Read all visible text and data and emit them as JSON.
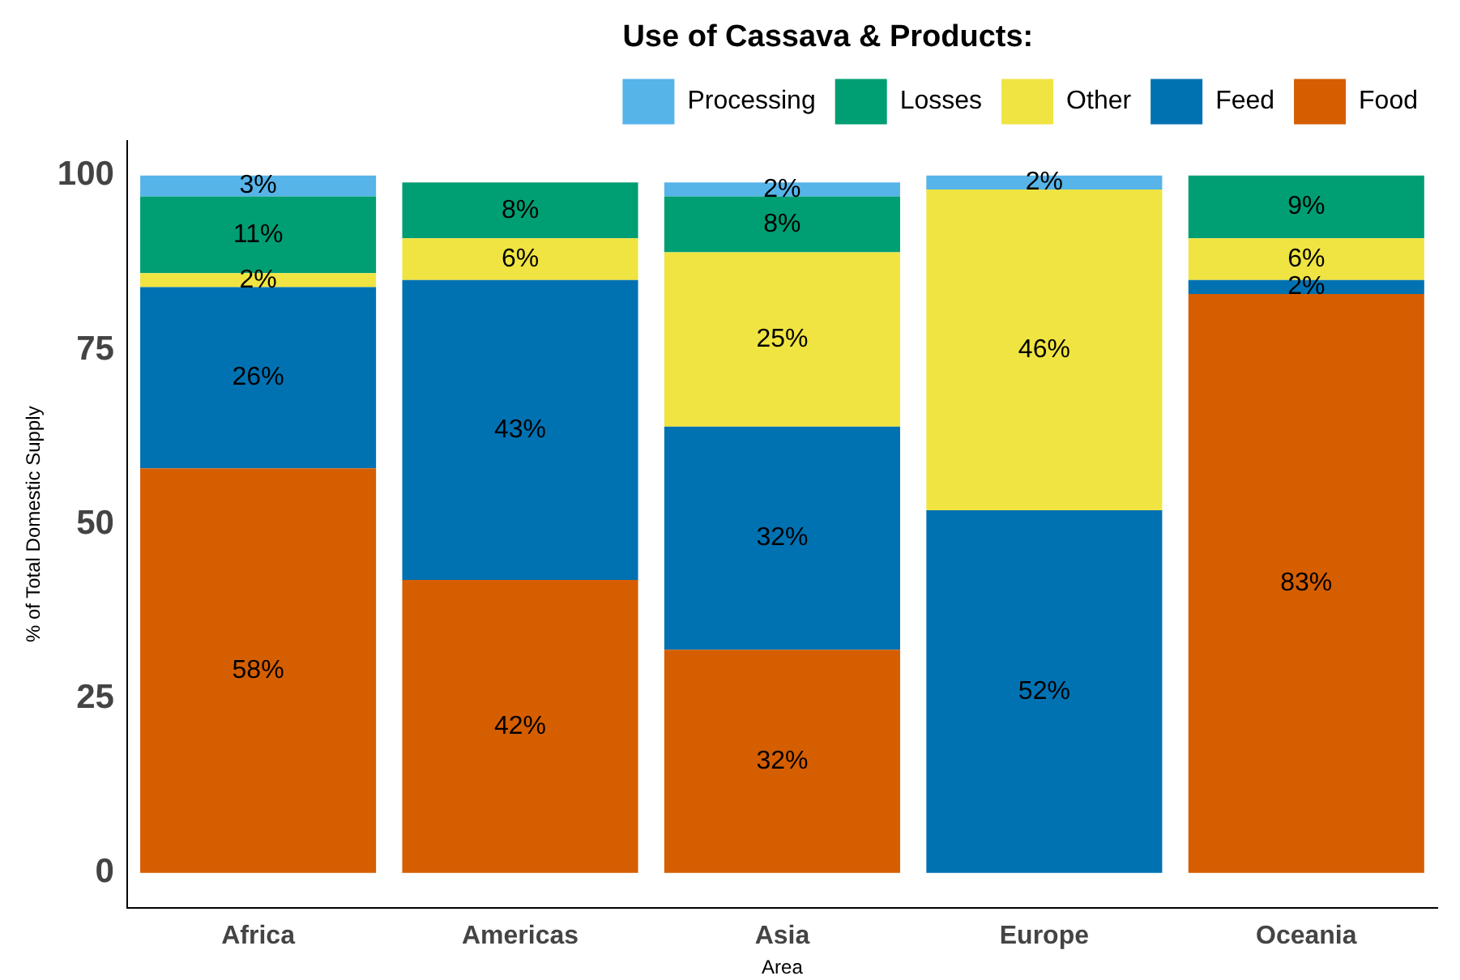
{
  "chart_data": {
    "type": "bar",
    "stacked": true,
    "legend_title": "Use of Cassava & Products:",
    "legend": "top",
    "xlabel": "Area",
    "ylabel": "% of Total Domestic Supply",
    "categories": [
      "Africa",
      "Americas",
      "Asia",
      "Europe",
      "Oceania"
    ],
    "ylim": [
      -5,
      105
    ],
    "yticks": [
      0,
      25,
      50,
      75,
      100
    ],
    "grid": false,
    "series": [
      {
        "name": "Food",
        "color": "#d55e00",
        "values": [
          58,
          42,
          32,
          null,
          83
        ],
        "value_labels": [
          "58%",
          "42%",
          "32%",
          null,
          "83%"
        ]
      },
      {
        "name": "Feed",
        "color": "#0072b2",
        "values": [
          26,
          43,
          32,
          52,
          2
        ],
        "value_labels": [
          "26%",
          "43%",
          "32%",
          "52%",
          "2%"
        ]
      },
      {
        "name": "Other",
        "color": "#f0e442",
        "values": [
          2,
          6,
          25,
          46,
          6
        ],
        "value_labels": [
          "2%",
          "6%",
          "25%",
          "46%",
          "6%"
        ]
      },
      {
        "name": "Losses",
        "color": "#009e73",
        "values": [
          11,
          8,
          8,
          null,
          9
        ],
        "value_labels": [
          "11%",
          "8%",
          "8%",
          null,
          "9%"
        ]
      },
      {
        "name": "Processing",
        "color": "#56b4e9",
        "values": [
          3,
          null,
          2,
          2,
          null
        ],
        "value_labels": [
          "3%",
          null,
          "2%",
          "2%",
          null
        ]
      }
    ]
  }
}
